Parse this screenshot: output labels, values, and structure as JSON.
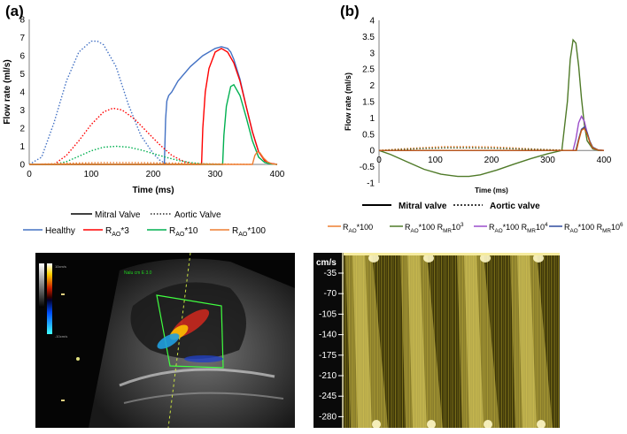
{
  "panel_a_label": "(a)",
  "panel_b_label": "(b)",
  "chart_data": [
    {
      "type": "line",
      "id": "a",
      "xlabel": "Time (ms)",
      "ylabel": "Flow rate (ml/s)",
      "xlim": [
        0,
        400
      ],
      "ylim": [
        0,
        8
      ],
      "xticks": [
        0,
        100,
        200,
        300,
        400
      ],
      "yticks": [
        0,
        1,
        2,
        3,
        4,
        5,
        6,
        7,
        8
      ],
      "legend_styles": [
        {
          "name": "Mitral Valve",
          "dash": "solid"
        },
        {
          "name": "Aortic Valve",
          "dash": "dotted"
        }
      ],
      "series": [
        {
          "name": "Healthy",
          "color": "#4472c4",
          "valve": "aortic",
          "x": [
            0,
            20,
            40,
            60,
            80,
            100,
            110,
            120,
            140,
            160,
            180,
            200,
            210,
            220,
            230
          ],
          "y": [
            0,
            0.4,
            2.3,
            4.6,
            6.2,
            6.8,
            6.8,
            6.6,
            5.4,
            3.3,
            1.6,
            0.6,
            0.25,
            0.05,
            0
          ]
        },
        {
          "name": "Healthy",
          "color": "#4472c4",
          "valve": "mitral",
          "x": [
            0,
            218,
            220,
            222,
            225,
            230,
            240,
            260,
            280,
            300,
            310,
            320,
            325,
            330,
            340,
            350,
            360,
            370,
            380,
            390,
            400
          ],
          "y": [
            0,
            0,
            2.5,
            3.5,
            3.8,
            4.0,
            4.6,
            5.4,
            6.0,
            6.4,
            6.5,
            6.4,
            6.2,
            5.8,
            4.7,
            3.2,
            1.8,
            0.7,
            0.2,
            0.05,
            0
          ]
        },
        {
          "name": "RAO*3",
          "color": "#ff0000",
          "valve": "aortic",
          "x": [
            0,
            40,
            60,
            80,
            100,
            120,
            135,
            150,
            170,
            190,
            210,
            230,
            250,
            265,
            275
          ],
          "y": [
            0,
            0,
            0.5,
            1.3,
            2.2,
            2.9,
            3.1,
            3.0,
            2.5,
            1.8,
            1.1,
            0.5,
            0.15,
            0.03,
            0
          ]
        },
        {
          "name": "RAO*3",
          "color": "#ff0000",
          "valve": "mitral",
          "x": [
            0,
            278,
            280,
            284,
            290,
            300,
            310,
            320,
            330,
            340,
            350,
            360,
            370,
            380,
            390,
            400
          ],
          "y": [
            0,
            0,
            2.0,
            4.0,
            5.3,
            6.2,
            6.4,
            6.2,
            5.6,
            4.6,
            3.2,
            1.8,
            0.7,
            0.2,
            0.05,
            0
          ]
        },
        {
          "name": "RAO*10",
          "color": "#00b050",
          "valve": "aortic",
          "x": [
            0,
            40,
            60,
            80,
            100,
            120,
            140,
            160,
            180,
            200,
            220,
            240,
            260,
            280,
            300,
            312
          ],
          "y": [
            0,
            0,
            0.15,
            0.45,
            0.75,
            0.95,
            1.0,
            0.95,
            0.8,
            0.6,
            0.4,
            0.22,
            0.1,
            0.03,
            0.01,
            0
          ]
        },
        {
          "name": "RAO*10",
          "color": "#00b050",
          "valve": "mitral",
          "x": [
            0,
            312,
            314,
            318,
            325,
            330,
            340,
            350,
            360,
            370,
            380,
            390,
            400
          ],
          "y": [
            0,
            0,
            1.6,
            3.2,
            4.3,
            4.4,
            3.8,
            2.6,
            1.3,
            0.4,
            0.1,
            0.02,
            0
          ]
        },
        {
          "name": "RAO*100",
          "color": "#ed7d31",
          "valve": "aortic",
          "x": [
            0,
            40,
            80,
            120,
            160,
            200,
            240,
            280,
            320,
            360
          ],
          "y": [
            0,
            0.04,
            0.08,
            0.1,
            0.1,
            0.09,
            0.07,
            0.04,
            0.02,
            0
          ]
        },
        {
          "name": "RAO*100",
          "color": "#ed7d31",
          "valve": "mitral",
          "x": [
            0,
            360,
            364,
            368,
            372,
            378,
            385,
            392,
            400
          ],
          "y": [
            0,
            0,
            0.5,
            0.7,
            0.65,
            0.35,
            0.12,
            0.03,
            0
          ]
        }
      ],
      "legend": [
        "Healthy",
        "RAO*3",
        "RAO*10",
        "RAO*100"
      ]
    },
    {
      "type": "line",
      "id": "b",
      "xlabel": "Time (ms)",
      "ylabel": "Flow rate (ml/s)",
      "xlim": [
        0,
        400
      ],
      "ylim": [
        -1,
        4
      ],
      "xticks": [
        0,
        100,
        200,
        300,
        400
      ],
      "yticks": [
        -1,
        -0.5,
        0,
        0.5,
        1,
        1.5,
        2,
        2.5,
        3,
        3.5,
        4
      ],
      "legend_styles": [
        {
          "name": "Mitral valve",
          "dash": "solid"
        },
        {
          "name": "Aortic valve",
          "dash": "dotted"
        }
      ],
      "series": [
        {
          "name": "RAO*100",
          "color": "#ed7d31",
          "valve": "aortic",
          "x": [
            0,
            40,
            80,
            120,
            160,
            200,
            240,
            280,
            320,
            330
          ],
          "y": [
            0,
            0.05,
            0.09,
            0.12,
            0.12,
            0.11,
            0.08,
            0.04,
            0.01,
            0
          ]
        },
        {
          "name": "RAO*100 RMR10^3",
          "color": "#375623",
          "valve": "aortic",
          "x": [
            0,
            40,
            80,
            120,
            160,
            200,
            240,
            280,
            320,
            330
          ],
          "y": [
            0,
            0.03,
            0.06,
            0.08,
            0.08,
            0.07,
            0.05,
            0.03,
            0.01,
            0
          ]
        },
        {
          "name": "RAO*100 RMR10^3",
          "color": "#4f7a28",
          "valve": "mitral",
          "x": [
            0,
            20,
            50,
            80,
            110,
            140,
            160,
            180,
            210,
            240,
            270,
            300,
            325,
            335,
            340,
            345,
            350,
            355,
            360,
            365,
            370,
            380,
            390,
            400
          ],
          "y": [
            0,
            -0.12,
            -0.35,
            -0.58,
            -0.73,
            -0.8,
            -0.8,
            -0.75,
            -0.6,
            -0.42,
            -0.25,
            -0.1,
            0,
            1.5,
            2.8,
            3.4,
            3.3,
            2.6,
            1.6,
            0.8,
            0.3,
            0.05,
            0,
            0
          ]
        },
        {
          "name": "RAO*100 RMR10^4",
          "color": "#9b4dca",
          "valve": "mitral",
          "x": [
            0,
            345,
            350,
            355,
            360,
            365,
            370,
            375,
            380,
            390,
            400
          ],
          "y": [
            0,
            0,
            0.35,
            0.85,
            1.05,
            0.9,
            0.55,
            0.25,
            0.08,
            0.01,
            0
          ]
        },
        {
          "name": "RAO*100 RMR10^6",
          "color": "#2e4a9e",
          "valve": "mitral",
          "x": [
            0,
            350,
            355,
            360,
            365,
            370,
            375,
            380,
            390,
            400
          ],
          "y": [
            0,
            0,
            0.35,
            0.65,
            0.72,
            0.55,
            0.28,
            0.1,
            0.01,
            0
          ]
        },
        {
          "name": "RAO*100",
          "color": "#c55a11",
          "valve": "mitral",
          "x": [
            0,
            351,
            355,
            360,
            365,
            370,
            375,
            380,
            390,
            400
          ],
          "y": [
            0,
            0,
            0.3,
            0.62,
            0.68,
            0.5,
            0.25,
            0.08,
            0.01,
            0
          ]
        }
      ],
      "legend": [
        "RAO*100",
        "RAO*100 RMR10^3",
        "RAO*100 RMR10^4",
        "RAO*100 RMR10^6"
      ]
    }
  ],
  "ultrasound_left": {
    "marker_text": "Nalu cm\nE 3.0",
    "scale_top": "10cm/s",
    "scale_bottom": "-10cm/s"
  },
  "doppler_right": {
    "unit_label": "cm/s",
    "ticks": [
      "-35",
      "-70",
      "-105",
      "-140",
      "-175",
      "-210",
      "-245",
      "-280"
    ]
  }
}
